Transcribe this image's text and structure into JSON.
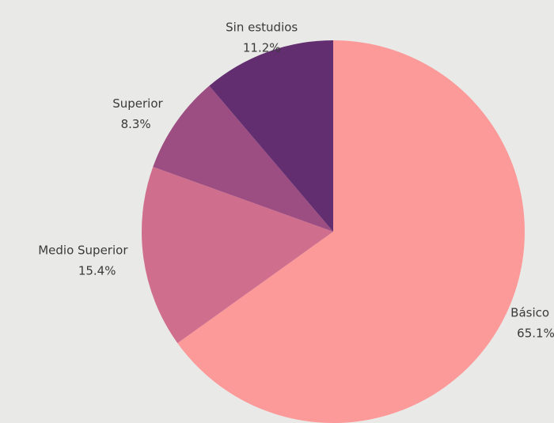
{
  "chart_data": {
    "type": "pie",
    "categories": [
      "Básico",
      "Medio Superior",
      "Superior",
      "Sin estudios"
    ],
    "values": [
      65.1,
      15.4,
      8.3,
      11.2
    ],
    "value_labels": [
      "65.1%",
      "15.4%",
      "8.3%",
      "11.2%"
    ],
    "colors": [
      "#fc9a9a",
      "#d06e8e",
      "#9c4d81",
      "#622e70"
    ],
    "start_angle": 0,
    "direction": "clockwise"
  }
}
